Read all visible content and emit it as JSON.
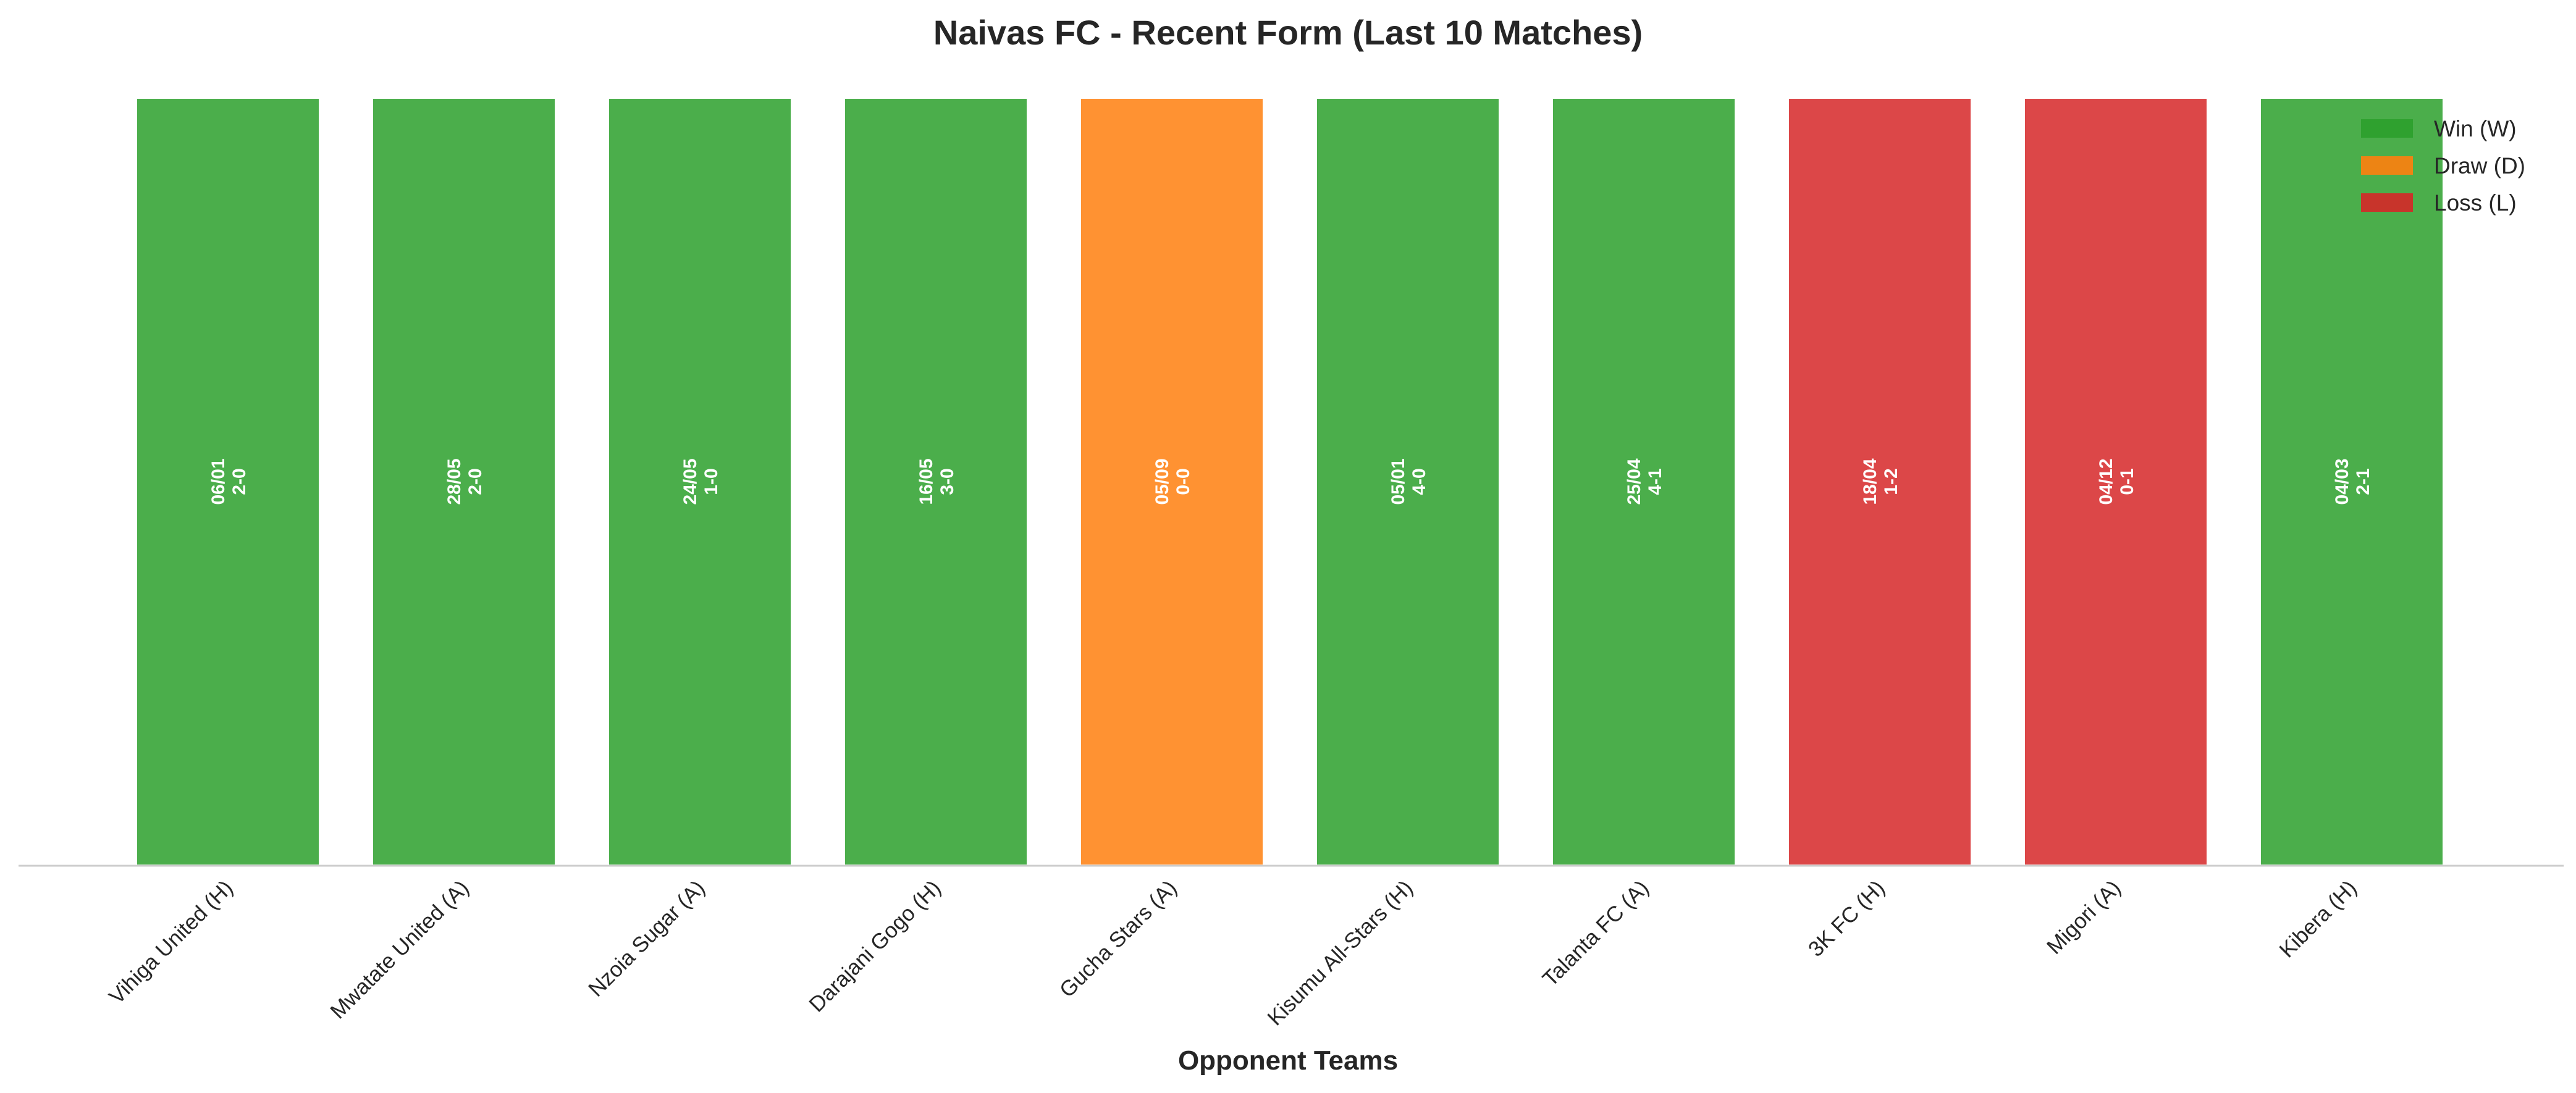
{
  "chart_data": {
    "type": "bar",
    "title": "Naivas FC - Recent Form (Last 10 Matches)",
    "xlabel": "Opponent Teams",
    "ylabel": "",
    "ylim": [
      0,
      1
    ],
    "grid": false,
    "legend_position": "top-right",
    "categories": [
      "Vihiga United (H)",
      "Mwatate United (A)",
      "Nzoia Sugar (A)",
      "Darajani Gogo (H)",
      "Gucha Stars (A)",
      "Kisumu All-Stars (H)",
      "Talanta FC (A)",
      "3K FC (H)",
      "Migori (A)",
      "Kibera (H)"
    ],
    "values": [
      1,
      1,
      1,
      1,
      1,
      1,
      1,
      1,
      1,
      1
    ],
    "results": [
      "W",
      "W",
      "W",
      "W",
      "D",
      "W",
      "W",
      "L",
      "L",
      "W"
    ],
    "dates": [
      "06/01",
      "28/05",
      "24/05",
      "16/05",
      "05/09",
      "05/01",
      "25/04",
      "18/04",
      "04/12",
      "04/03"
    ],
    "scores": [
      "2-0",
      "2-0",
      "1-0",
      "3-0",
      "0-0",
      "4-0",
      "4-1",
      "1-2",
      "0-1",
      "2-1"
    ],
    "legend": [
      {
        "key": "W",
        "label": "Win (W)"
      },
      {
        "key": "D",
        "label": "Draw (D)"
      },
      {
        "key": "L",
        "label": "Loss (L)"
      }
    ],
    "colors": {
      "W": "#2ca02c",
      "D": "#ff7f0e",
      "L": "#d62728",
      "axis": "#cccccc",
      "text": "#262626",
      "bar_edge": "#ffffff"
    }
  }
}
